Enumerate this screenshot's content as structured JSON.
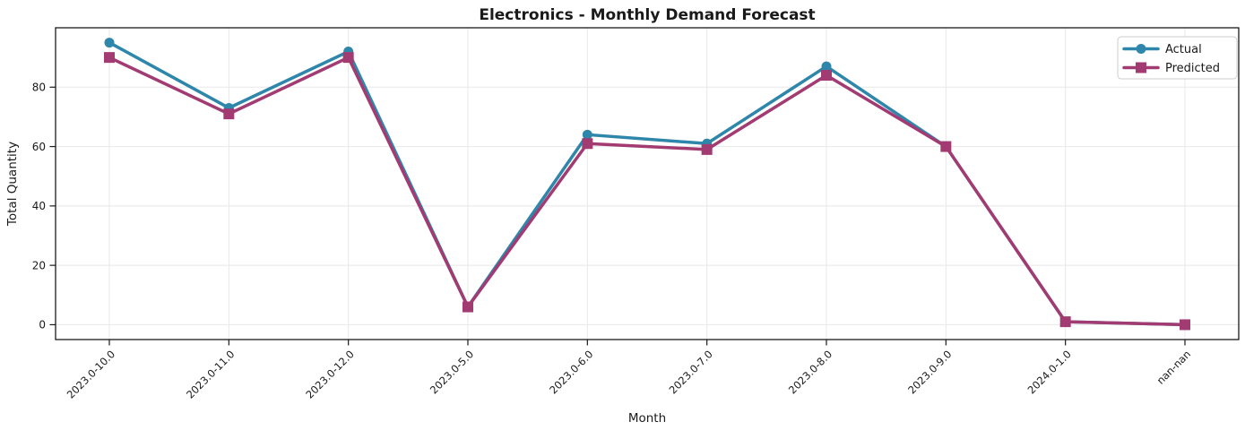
{
  "figure": {
    "background": "#ffffff",
    "text_color": "#1a1a1a",
    "spine_color": "#1a1a1a"
  },
  "chart_data": {
    "type": "line",
    "title": "Electronics - Monthly Demand Forecast",
    "xlabel": "Month",
    "ylabel": "Total Quantity",
    "categories": [
      "2023.0-10.0",
      "2023.0-11.0",
      "2023.0-12.0",
      "2023.0-5.0",
      "2023.0-6.0",
      "2023.0-7.0",
      "2023.0-8.0",
      "2023.0-9.0",
      "2024.0-1.0",
      "nan-nan"
    ],
    "series": [
      {
        "name": "Actual",
        "color": "#2E86AB",
        "marker": "circle",
        "values": [
          95,
          73,
          92,
          6,
          64,
          61,
          87,
          60,
          1,
          0
        ]
      },
      {
        "name": "Predicted",
        "color": "#A23B72",
        "marker": "square",
        "values": [
          90,
          71,
          90,
          6,
          61,
          59,
          84,
          60,
          1,
          0
        ]
      }
    ],
    "yticks": [
      0,
      20,
      40,
      60,
      80
    ],
    "ylim": [
      -5,
      100
    ],
    "grid": true,
    "grid_color": "#e8e8e8",
    "x_tick_rotation_deg": 45,
    "legend": {
      "position": "upper-right",
      "entries": [
        "Actual",
        "Predicted"
      ]
    }
  }
}
